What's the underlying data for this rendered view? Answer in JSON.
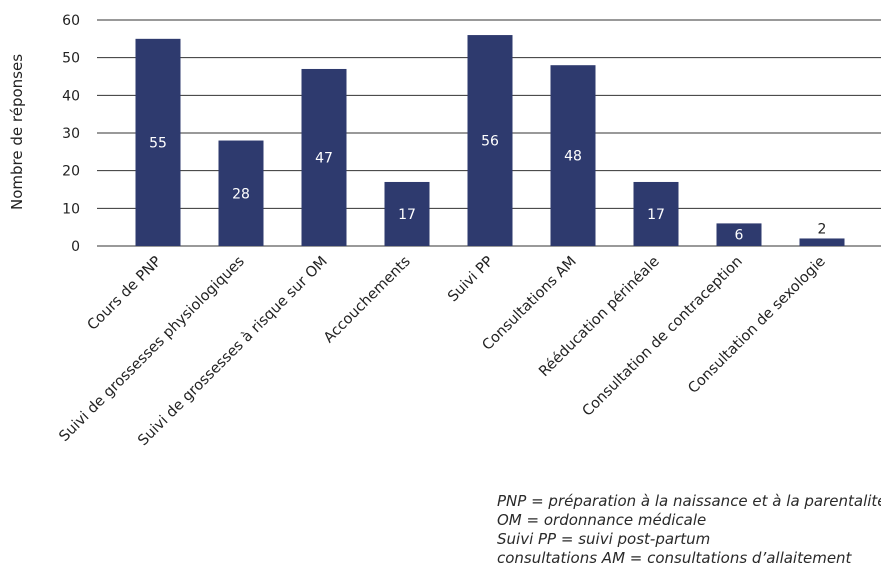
{
  "chart_data": {
    "type": "bar",
    "ylabel": "Nombre de réponses",
    "xlabel": "",
    "ylim": [
      0,
      60
    ],
    "yticks": [
      0,
      10,
      20,
      30,
      40,
      50,
      60
    ],
    "grid": true,
    "bar_color": "#2e3a6e",
    "categories": [
      "Cours de PNP",
      "Suivi de grossesses physiologiques",
      "Suivi de grossesses à risque sur OM",
      "Accouchements",
      "Suivi PP",
      "Consultations AM",
      "Rééducation périnéale",
      "Consultation de contraception",
      "Consultation de sexologie"
    ],
    "values": [
      55,
      28,
      47,
      17,
      56,
      48,
      17,
      6,
      2
    ],
    "data_labels": [
      "55",
      "28",
      "47",
      "17",
      "56",
      "48",
      "17",
      "6",
      "2"
    ]
  },
  "footnotes": [
    "PNP = préparation à la naissance et à la parentalité",
    "OM = ordonnance médicale",
    "Suivi PP = suivi post-partum",
    "consultations AM = consultations d’allaitement"
  ]
}
